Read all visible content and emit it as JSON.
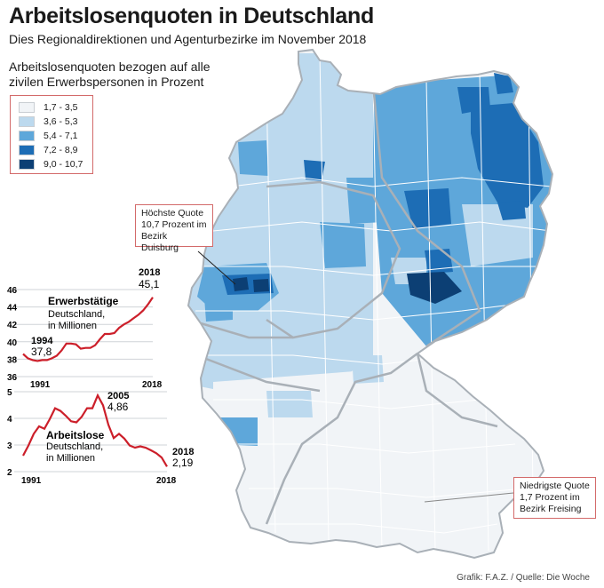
{
  "header": {
    "title": "Arbeitslosenquoten in Deutschland",
    "subtitle": "Dies Regionaldirektionen und Agenturbezirke im November 2018"
  },
  "legend": {
    "heading": "Arbeitslosenquoten bezogen auf alle zivilen Erwerbspersonen in Prozent",
    "items": [
      {
        "label": "1,7 - 3,5",
        "color": "#f1f4f7"
      },
      {
        "label": "3,6 - 5,3",
        "color": "#bcd9ee"
      },
      {
        "label": "5,4 - 7,1",
        "color": "#5ea7da"
      },
      {
        "label": "7,2 - 8,9",
        "color": "#1d6db5"
      },
      {
        "label": "9,0 - 10,7",
        "color": "#0c3f74"
      }
    ]
  },
  "callouts": {
    "highest": {
      "line1": "Höchste Quote",
      "line2": "10,7 Prozent im",
      "line3": "Bezirk Duisburg"
    },
    "lowest": {
      "line1": "Niedrigste Quote",
      "line2": "1,7 Prozent im",
      "line3": "Bezirk Freising"
    }
  },
  "credit": "Grafik: F.A.Z. / Quelle: Die Woche",
  "colors": {
    "line": "#cc1f2a",
    "accent_border": "#d36a6a",
    "border_grey": "#a9b0b7"
  },
  "chart_data": [
    {
      "type": "line",
      "title": "Erwerbstätige",
      "subtitle": "Deutschland, in Millionen",
      "x": [
        1991,
        1992,
        1993,
        1994,
        1995,
        1996,
        1997,
        1998,
        1999,
        2000,
        2001,
        2002,
        2003,
        2004,
        2005,
        2006,
        2007,
        2008,
        2009,
        2010,
        2011,
        2012,
        2013,
        2014,
        2015,
        2016,
        2017,
        2018
      ],
      "values": [
        38.6,
        38.1,
        37.9,
        37.8,
        37.9,
        37.9,
        38.1,
        38.4,
        39.0,
        39.8,
        39.8,
        39.7,
        39.2,
        39.3,
        39.3,
        39.6,
        40.3,
        40.9,
        40.9,
        41.0,
        41.6,
        42.0,
        42.3,
        42.7,
        43.1,
        43.6,
        44.3,
        45.1
      ],
      "ylim": [
        36,
        46
      ],
      "yticks": [
        "46",
        "44",
        "42",
        "40",
        "38",
        "36"
      ],
      "xticks": [
        "1991",
        "2018"
      ],
      "annotations": {
        "start_year": "1994",
        "start_value": "37,8",
        "end_year": "2018",
        "end_value": "45,1"
      }
    },
    {
      "type": "line",
      "title": "Arbeitslose",
      "subtitle": "Deutschland, in Millionen",
      "x": [
        1991,
        1992,
        1993,
        1994,
        1995,
        1996,
        1997,
        1998,
        1999,
        2000,
        2001,
        2002,
        2003,
        2004,
        2005,
        2006,
        2007,
        2008,
        2009,
        2010,
        2011,
        2012,
        2013,
        2014,
        2015,
        2016,
        2017,
        2018
      ],
      "values": [
        2.6,
        2.98,
        3.42,
        3.7,
        3.61,
        3.97,
        4.38,
        4.28,
        4.1,
        3.89,
        3.85,
        4.06,
        4.38,
        4.38,
        4.86,
        4.49,
        3.76,
        3.26,
        3.42,
        3.24,
        2.98,
        2.9,
        2.95,
        2.9,
        2.8,
        2.69,
        2.53,
        2.19
      ],
      "ylim": [
        2,
        5
      ],
      "yticks": [
        "5",
        "4",
        "3",
        "2"
      ],
      "xticks": [
        "1991",
        "2018"
      ],
      "annotations": {
        "peak_year": "2005",
        "peak_value": "4,86",
        "end_year": "2018",
        "end_value": "2,19"
      }
    }
  ]
}
